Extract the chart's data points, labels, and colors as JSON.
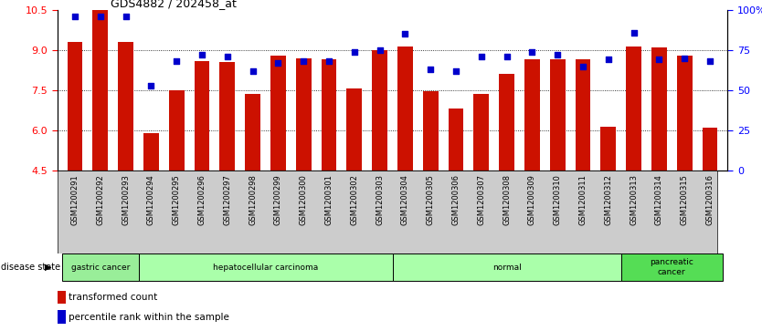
{
  "title": "GDS4882 / 202458_at",
  "samples": [
    "GSM1200291",
    "GSM1200292",
    "GSM1200293",
    "GSM1200294",
    "GSM1200295",
    "GSM1200296",
    "GSM1200297",
    "GSM1200298",
    "GSM1200299",
    "GSM1200300",
    "GSM1200301",
    "GSM1200302",
    "GSM1200303",
    "GSM1200304",
    "GSM1200305",
    "GSM1200306",
    "GSM1200307",
    "GSM1200308",
    "GSM1200309",
    "GSM1200310",
    "GSM1200311",
    "GSM1200312",
    "GSM1200313",
    "GSM1200314",
    "GSM1200315",
    "GSM1200316"
  ],
  "bar_values": [
    9.3,
    10.5,
    9.3,
    5.9,
    7.5,
    8.6,
    8.55,
    7.35,
    8.8,
    8.7,
    8.65,
    7.55,
    9.0,
    9.15,
    7.45,
    6.8,
    7.35,
    8.1,
    8.65,
    8.65,
    8.65,
    6.15,
    9.15,
    9.1,
    8.8,
    6.1
  ],
  "percentile_values": [
    96,
    96,
    96,
    53,
    68,
    72,
    71,
    62,
    67,
    68,
    68,
    74,
    75,
    85,
    63,
    62,
    71,
    71,
    74,
    72,
    65,
    69,
    86,
    69,
    70,
    68
  ],
  "group_configs": [
    {
      "label": "gastric cancer",
      "start": 0,
      "end": 3,
      "color": "#99ee99"
    },
    {
      "label": "hepatocellular carcinoma",
      "start": 3,
      "end": 13,
      "color": "#aaffaa"
    },
    {
      "label": "normal",
      "start": 13,
      "end": 22,
      "color": "#aaffaa"
    },
    {
      "label": "pancreatic\ncancer",
      "start": 22,
      "end": 26,
      "color": "#55dd55"
    }
  ],
  "bar_color": "#cc1100",
  "dot_color": "#0000cc",
  "ylim_left": [
    4.5,
    10.5
  ],
  "ylim_right": [
    0,
    100
  ],
  "yticks_left": [
    4.5,
    6.0,
    7.5,
    9.0,
    10.5
  ],
  "yticks_right": [
    0,
    25,
    50,
    75,
    100
  ],
  "grid_values": [
    6.0,
    7.5,
    9.0
  ],
  "bar_width": 0.6,
  "fig_width": 8.34,
  "fig_height": 3.63
}
